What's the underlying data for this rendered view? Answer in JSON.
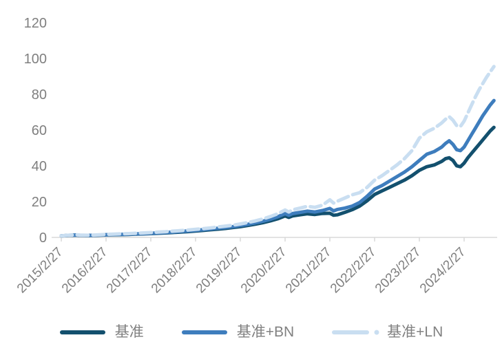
{
  "chart_data": {
    "type": "line",
    "title": "",
    "xlabel": "",
    "ylabel": "",
    "grid": "off",
    "legend_position": "bottom",
    "y_axis": {
      "ticks": [
        "0",
        "20",
        "40",
        "60",
        "80",
        "100",
        "120"
      ],
      "range": [
        0,
        120
      ]
    },
    "x_axis": {
      "categories": [
        "2015/2/27",
        "2016/2/27",
        "2017/2/27",
        "2018/2/27",
        "2019/2/27",
        "2020/2/27",
        "2021/2/27",
        "2022/2/27",
        "2023/2/27",
        "2024/2/27"
      ],
      "months_per_category": 12
    },
    "series": [
      {
        "name": "基准",
        "color": "#13506E",
        "style": "solid",
        "points": [
          [
            0,
            0.9
          ],
          [
            2,
            1.1
          ],
          [
            4,
            1.3
          ],
          [
            5,
            1.15
          ],
          [
            7,
            1.05
          ],
          [
            9,
            1.15
          ],
          [
            11,
            1.3
          ],
          [
            12,
            1.4
          ],
          [
            14,
            1.5
          ],
          [
            16,
            1.55
          ],
          [
            18,
            1.65
          ],
          [
            20,
            1.8
          ],
          [
            22,
            1.95
          ],
          [
            24,
            2.1
          ],
          [
            26,
            2.3
          ],
          [
            28,
            2.5
          ],
          [
            30,
            2.75
          ],
          [
            32,
            3.0
          ],
          [
            34,
            3.25
          ],
          [
            36,
            3.55
          ],
          [
            38,
            3.9
          ],
          [
            40,
            4.25
          ],
          [
            42,
            4.6
          ],
          [
            44,
            5.0
          ],
          [
            46,
            5.5
          ],
          [
            48,
            6.0
          ],
          [
            50,
            6.7
          ],
          [
            52,
            7.4
          ],
          [
            54,
            8.2
          ],
          [
            56,
            9.2
          ],
          [
            58,
            10.4
          ],
          [
            60,
            12.0
          ],
          [
            61,
            11.2
          ],
          [
            62,
            12.0
          ],
          [
            64,
            12.6
          ],
          [
            66,
            13.2
          ],
          [
            68,
            12.8
          ],
          [
            70,
            13.4
          ],
          [
            72,
            13.5
          ],
          [
            73,
            12.4
          ],
          [
            74,
            12.6
          ],
          [
            76,
            14.0
          ],
          [
            78,
            15.5
          ],
          [
            80,
            17.5
          ],
          [
            82,
            20.5
          ],
          [
            84,
            24.0
          ],
          [
            86,
            26.0
          ],
          [
            88,
            28.0
          ],
          [
            90,
            30.0
          ],
          [
            92,
            32.0
          ],
          [
            94,
            34.5
          ],
          [
            96,
            37.5
          ],
          [
            98,
            39.5
          ],
          [
            100,
            40.5
          ],
          [
            102,
            42.5
          ],
          [
            103,
            44.0
          ],
          [
            104,
            44.5
          ],
          [
            105,
            43.0
          ],
          [
            106,
            40.0
          ],
          [
            107,
            39.5
          ],
          [
            108,
            41.5
          ],
          [
            109,
            44.5
          ],
          [
            110,
            47.0
          ],
          [
            111,
            49.5
          ],
          [
            112,
            52.0
          ],
          [
            113,
            54.5
          ],
          [
            114,
            57.0
          ],
          [
            115,
            59.5
          ],
          [
            116,
            61.5
          ]
        ]
      },
      {
        "name": "基准+BN",
        "color": "#3E7DBD",
        "style": "solid",
        "points": [
          [
            0,
            0.9
          ],
          [
            2,
            1.15
          ],
          [
            4,
            1.35
          ],
          [
            5,
            1.2
          ],
          [
            7,
            1.1
          ],
          [
            9,
            1.2
          ],
          [
            11,
            1.4
          ],
          [
            12,
            1.5
          ],
          [
            14,
            1.6
          ],
          [
            16,
            1.7
          ],
          [
            18,
            1.8
          ],
          [
            20,
            1.95
          ],
          [
            22,
            2.1
          ],
          [
            24,
            2.3
          ],
          [
            26,
            2.5
          ],
          [
            28,
            2.75
          ],
          [
            30,
            3.0
          ],
          [
            32,
            3.3
          ],
          [
            34,
            3.6
          ],
          [
            36,
            3.95
          ],
          [
            38,
            4.3
          ],
          [
            40,
            4.7
          ],
          [
            42,
            5.1
          ],
          [
            44,
            5.5
          ],
          [
            46,
            6.0
          ],
          [
            48,
            6.6
          ],
          [
            50,
            7.3
          ],
          [
            52,
            8.1
          ],
          [
            54,
            9.0
          ],
          [
            56,
            10.1
          ],
          [
            58,
            11.5
          ],
          [
            60,
            13.3
          ],
          [
            61,
            12.4
          ],
          [
            62,
            13.3
          ],
          [
            64,
            14.0
          ],
          [
            66,
            14.7
          ],
          [
            68,
            14.2
          ],
          [
            70,
            15.0
          ],
          [
            72,
            16.2
          ],
          [
            73,
            14.8
          ],
          [
            74,
            15.6
          ],
          [
            76,
            16.4
          ],
          [
            78,
            17.5
          ],
          [
            80,
            19.5
          ],
          [
            82,
            23.0
          ],
          [
            84,
            27.0
          ],
          [
            86,
            29.0
          ],
          [
            88,
            31.5
          ],
          [
            90,
            34.0
          ],
          [
            92,
            36.5
          ],
          [
            94,
            39.5
          ],
          [
            96,
            43.0
          ],
          [
            98,
            46.5
          ],
          [
            100,
            48.0
          ],
          [
            102,
            50.5
          ],
          [
            103,
            52.5
          ],
          [
            104,
            54.0
          ],
          [
            105,
            52.0
          ],
          [
            106,
            49.0
          ],
          [
            107,
            48.5
          ],
          [
            108,
            50.5
          ],
          [
            109,
            54.0
          ],
          [
            110,
            57.5
          ],
          [
            111,
            61.0
          ],
          [
            112,
            64.5
          ],
          [
            113,
            68.0
          ],
          [
            114,
            71.0
          ],
          [
            115,
            74.0
          ],
          [
            116,
            76.5
          ]
        ]
      },
      {
        "name": "基准+LN",
        "color": "#C9DEF1",
        "style": "dashed",
        "points": [
          [
            0,
            0.9
          ],
          [
            2,
            1.2
          ],
          [
            4,
            1.45
          ],
          [
            5,
            1.3
          ],
          [
            7,
            1.2
          ],
          [
            9,
            1.35
          ],
          [
            11,
            1.55
          ],
          [
            12,
            1.7
          ],
          [
            14,
            1.85
          ],
          [
            16,
            2.0
          ],
          [
            18,
            2.1
          ],
          [
            20,
            2.3
          ],
          [
            22,
            2.5
          ],
          [
            24,
            2.7
          ],
          [
            26,
            2.95
          ],
          [
            28,
            3.2
          ],
          [
            30,
            3.5
          ],
          [
            32,
            3.8
          ],
          [
            34,
            4.1
          ],
          [
            36,
            4.5
          ],
          [
            38,
            4.9
          ],
          [
            40,
            5.3
          ],
          [
            42,
            5.8
          ],
          [
            44,
            6.3
          ],
          [
            46,
            6.8
          ],
          [
            48,
            7.5
          ],
          [
            50,
            8.3
          ],
          [
            52,
            9.2
          ],
          [
            54,
            10.3
          ],
          [
            56,
            11.6
          ],
          [
            58,
            13.2
          ],
          [
            60,
            15.3
          ],
          [
            61,
            14.2
          ],
          [
            62,
            15.4
          ],
          [
            64,
            16.4
          ],
          [
            66,
            17.4
          ],
          [
            68,
            16.8
          ],
          [
            70,
            18.0
          ],
          [
            72,
            21.0
          ],
          [
            73,
            19.2
          ],
          [
            74,
            20.2
          ],
          [
            76,
            22.0
          ],
          [
            78,
            23.8
          ],
          [
            80,
            25.0
          ],
          [
            82,
            28.0
          ],
          [
            84,
            32.0
          ],
          [
            86,
            34.5
          ],
          [
            88,
            37.5
          ],
          [
            90,
            40.5
          ],
          [
            92,
            44.0
          ],
          [
            94,
            48.5
          ],
          [
            96,
            55.5
          ],
          [
            98,
            59.0
          ],
          [
            100,
            61.0
          ],
          [
            102,
            64.0
          ],
          [
            103,
            66.0
          ],
          [
            104,
            67.5
          ],
          [
            105,
            65.5
          ],
          [
            106,
            62.5
          ],
          [
            107,
            62.0
          ],
          [
            108,
            65.0
          ],
          [
            109,
            69.5
          ],
          [
            110,
            74.0
          ],
          [
            111,
            78.5
          ],
          [
            112,
            82.5
          ],
          [
            113,
            86.0
          ],
          [
            114,
            89.5
          ],
          [
            115,
            92.5
          ],
          [
            116,
            95.5
          ]
        ]
      }
    ],
    "style_colors": {
      "axis_line": "#D9D9D9",
      "tick_label": "#7f7f7f",
      "legend_text": "#808080"
    }
  }
}
